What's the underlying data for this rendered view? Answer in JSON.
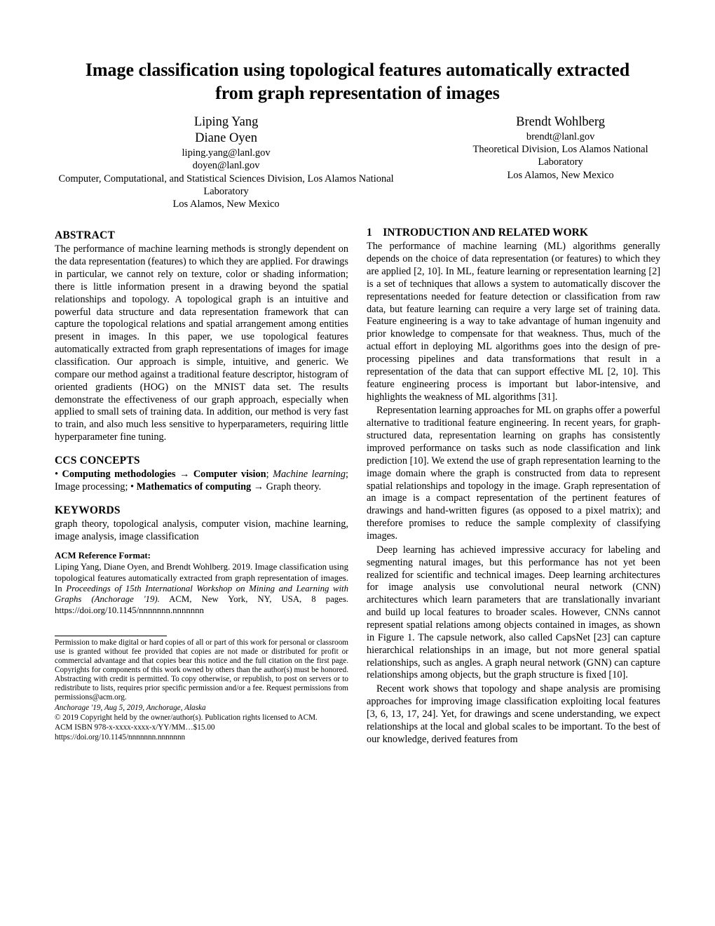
{
  "title": "Image classification using topological features automatically extracted from graph representation of images",
  "authors": {
    "left": {
      "name1": "Liping Yang",
      "name2": "Diane Oyen",
      "email1": "liping.yang@lanl.gov",
      "email2": "doyen@lanl.gov",
      "affil": "Computer, Computational, and Statistical Sciences Division, Los Alamos National Laboratory",
      "loc": "Los Alamos, New Mexico"
    },
    "right": {
      "name1": "Brendt Wohlberg",
      "email1": "brendt@lanl.gov",
      "affil": "Theoretical Division, Los Alamos National Laboratory",
      "loc": "Los Alamos, New Mexico"
    }
  },
  "left_col": {
    "abstract_h": "ABSTRACT",
    "abstract": "The performance of machine learning methods is strongly dependent on the data representation (features) to which they are applied. For drawings in particular, we cannot rely on texture, color or shading information; there is little information present in a drawing beyond the spatial relationships and topology. A topological graph is an intuitive and powerful data structure and data representation framework that can capture the topological relations and spatial arrangement among entities present in images. In this paper, we use topological features automatically extracted from graph representations of images for image classification. Our approach is simple, intuitive, and generic. We compare our method against a traditional feature descriptor, histogram of oriented gradients (HOG) on the MNIST data set. The results demonstrate the effectiveness of our graph approach, especially when applied to small sets of training data. In addition, our method is very fast to train, and also much less sensitive to hyperparameters, requiring little hyperparameter fine tuning.",
    "ccs_h": "CCS CONCEPTS",
    "ccs_html": "• <b>Computing methodologies</b> <span class=\"arrow\">→</span> <b>Computer vision</b>; <i>Machine learning</i>; Image processing; • <b>Mathematics of computing</b> <span class=\"arrow\">→</span> Graph theory.",
    "kw_h": "KEYWORDS",
    "kw": "graph theory, topological analysis, computer vision, machine learning, image analysis, image classification",
    "ref_h": "ACM Reference Format:",
    "ref_body": "Liping Yang, Diane Oyen, and Brendt Wohlberg. 2019. Image classification using topological features automatically extracted from graph representation of images. In <i>Proceedings of 15th International Workshop on Mining and Learning with Graphs (Anchorage '19).</i> ACM, New York, NY, USA, 8 pages. https://doi.org/10.1145/nnnnnnn.nnnnnnn",
    "perm": "Permission to make digital or hard copies of all or part of this work for personal or classroom use is granted without fee provided that copies are not made or distributed for profit or commercial advantage and that copies bear this notice and the full citation on the first page. Copyrights for components of this work owned by others than the author(s) must be honored. Abstracting with credit is permitted. To copy otherwise, or republish, to post on servers or to redistribute to lists, requires prior specific permission and/or a fee. Request permissions from permissions@acm.org.",
    "conf": "Anchorage '19, Aug 5, 2019, Anchorage, Alaska",
    "copyright": "© 2019 Copyright held by the owner/author(s). Publication rights licensed to ACM.",
    "isbn": "ACM ISBN 978-x-xxxx-xxxx-x/YY/MM…$15.00",
    "doi": "https://doi.org/10.1145/nnnnnnn.nnnnnnn"
  },
  "right_col": {
    "intro_h": "1 INTRODUCTION AND RELATED WORK",
    "p1": "The performance of machine learning (ML) algorithms generally depends on the choice of data representation (or features) to which they are applied [2, 10]. In ML, feature learning or representation learning [2] is a set of techniques that allows a system to automatically discover the representations needed for feature detection or classification from raw data, but feature learning can require a very large set of training data. Feature engineering is a way to take advantage of human ingenuity and prior knowledge to compensate for that weakness. Thus, much of the actual effort in deploying ML algorithms goes into the design of pre-processing pipelines and data transformations that result in a representation of the data that can support effective ML [2, 10]. This feature engineering process is important but labor-intensive, and highlights the weakness of ML algorithms [31].",
    "p2": "Representation learning approaches for ML on graphs offer a powerful alternative to traditional feature engineering. In recent years, for graph-structured data, representation learning on graphs has consistently improved performance on tasks such as node classification and link prediction [10]. We extend the use of graph representation learning to the image domain where the graph is constructed from data to represent spatial relationships and topology in the image. Graph representation of an image is a compact representation of the pertinent features of drawings and hand-written figures (as opposed to a pixel matrix); and therefore promises to reduce the sample complexity of classifying images.",
    "p3": "Deep learning has achieved impressive accuracy for labeling and segmenting natural images, but this performance has not yet been realized for scientific and technical images. Deep learning architectures for image analysis use convolutional neural network (CNN) architectures which learn parameters that are translationally invariant and build up local features to broader scales. However, CNNs cannot represent spatial relations among objects contained in images, as shown in Figure 1. The capsule network, also called CapsNet [23] can capture hierarchical relationships in an image, but not more general spatial relationships, such as angles. A graph neural network (GNN) can capture relationships among objects, but the graph structure is fixed [10].",
    "p4": "Recent work shows that topology and shape analysis are promising approaches for improving image classification exploiting local features [3, 6, 13, 17, 24]. Yet, for drawings and scene understanding, we expect relationships at the local and global scales to be important. To the best of our knowledge, derived features from"
  },
  "colors": {
    "text": "#000000",
    "bg": "#ffffff"
  }
}
